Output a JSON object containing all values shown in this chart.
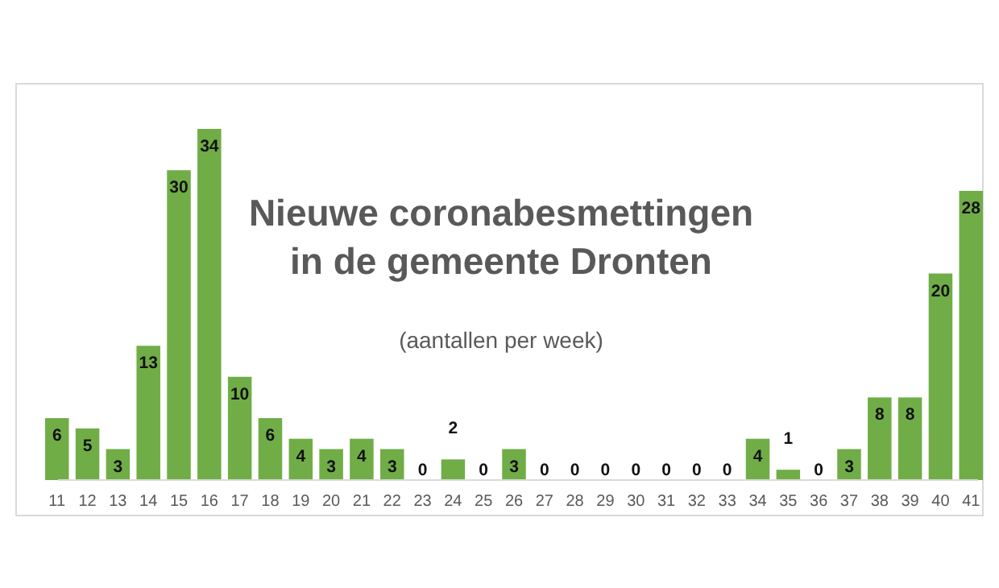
{
  "chart_data": {
    "type": "bar",
    "title": "Nieuwe coronabesmettingen in de gemeente Dronten",
    "subtitle": "(aantallen per week)",
    "categories": [
      "11",
      "12",
      "13",
      "14",
      "15",
      "16",
      "17",
      "18",
      "19",
      "20",
      "21",
      "22",
      "23",
      "24",
      "25",
      "26",
      "27",
      "28",
      "29",
      "30",
      "31",
      "32",
      "33",
      "34",
      "35",
      "36",
      "37",
      "38",
      "39",
      "40",
      "41"
    ],
    "values": [
      6,
      5,
      3,
      13,
      30,
      34,
      10,
      6,
      4,
      3,
      4,
      3,
      0,
      2,
      0,
      3,
      0,
      0,
      0,
      0,
      0,
      0,
      0,
      4,
      1,
      0,
      3,
      8,
      8,
      20,
      28
    ],
    "color": "#70ad47",
    "data_labels": true
  }
}
